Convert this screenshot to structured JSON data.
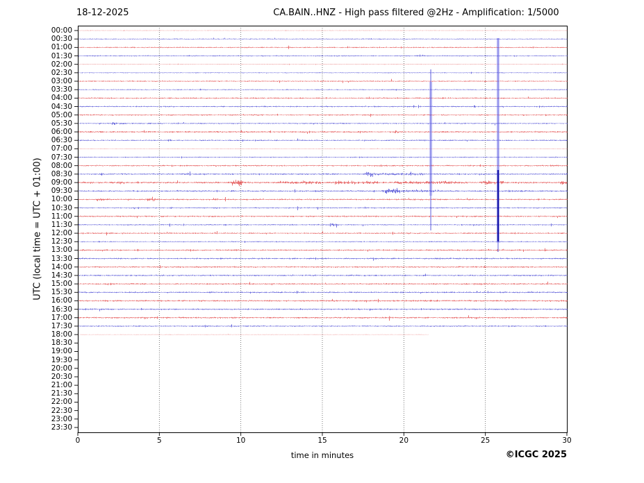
{
  "chart_data": {
    "type": "line",
    "subtype": "helicorder-seismogram",
    "date": "18-12-2025",
    "title": "CA.BAIN..HNZ - High pass filtered @2Hz - Amplification: 1/5000",
    "xlabel": "time in minutes",
    "ylabel": "UTC (local time = UTC + 01:00)",
    "copyright": "©ICGC 2025",
    "x_range": [
      0,
      30
    ],
    "x_ticks": [
      0,
      5,
      10,
      15,
      20,
      25,
      30
    ],
    "x_gridlines": [
      5,
      10,
      15,
      20,
      25
    ],
    "grid_style": "dotted-vertical",
    "row_interval_minutes": 30,
    "rows": [
      {
        "label": "00:00",
        "color": "red",
        "amp": 0.25,
        "end_minute": 30,
        "events": []
      },
      {
        "label": "00:30",
        "color": "blue",
        "amp": 0.6,
        "end_minute": 30,
        "events": []
      },
      {
        "label": "01:00",
        "color": "red",
        "amp": 0.75,
        "end_minute": 30,
        "events": [
          {
            "from": 3.2,
            "to": 3.5,
            "amp": 1.8
          }
        ]
      },
      {
        "label": "01:30",
        "color": "blue",
        "amp": 0.7,
        "end_minute": 30,
        "events": []
      },
      {
        "label": "02:00",
        "color": "red",
        "amp": 0.35,
        "end_minute": 30,
        "events": []
      },
      {
        "label": "02:30",
        "color": "blue",
        "amp": 0.5,
        "end_minute": 30,
        "events": [
          {
            "from": 7.2,
            "to": 7.35,
            "amp": 2.0
          }
        ]
      },
      {
        "label": "03:00",
        "color": "red",
        "amp": 0.8,
        "end_minute": 30,
        "events": [
          {
            "from": 14.8,
            "to": 15.1,
            "amp": 1.8
          }
        ]
      },
      {
        "label": "03:30",
        "color": "blue",
        "amp": 0.6,
        "end_minute": 30,
        "events": []
      },
      {
        "label": "04:00",
        "color": "red",
        "amp": 0.85,
        "end_minute": 30,
        "events": []
      },
      {
        "label": "04:30",
        "color": "blue",
        "amp": 0.8,
        "end_minute": 30,
        "events": [
          {
            "from": 24.25,
            "to": 24.4,
            "amp": 3.5
          }
        ]
      },
      {
        "label": "05:00",
        "color": "red",
        "amp": 0.85,
        "end_minute": 30,
        "events": []
      },
      {
        "label": "05:30",
        "color": "blue",
        "amp": 0.75,
        "end_minute": 30,
        "events": [
          {
            "from": 2.05,
            "to": 2.3,
            "amp": 2.6
          },
          {
            "from": 2.55,
            "to": 2.8,
            "amp": 2.2
          },
          {
            "from": 17.4,
            "to": 17.6,
            "amp": 1.8
          }
        ]
      },
      {
        "label": "06:00",
        "color": "red",
        "amp": 1.05,
        "end_minute": 30,
        "events": [
          {
            "from": 19.4,
            "to": 19.7,
            "amp": 1.8
          }
        ]
      },
      {
        "label": "06:30",
        "color": "blue",
        "amp": 0.8,
        "end_minute": 30,
        "events": [
          {
            "from": 20.9,
            "to": 21.2,
            "amp": 1.6
          }
        ]
      },
      {
        "label": "07:00",
        "color": "red",
        "amp": 0.28,
        "end_minute": 30,
        "events": []
      },
      {
        "label": "07:30",
        "color": "blue",
        "amp": 0.65,
        "end_minute": 30,
        "events": []
      },
      {
        "label": "08:00",
        "color": "red",
        "amp": 0.95,
        "end_minute": 30,
        "events": [
          {
            "from": 8.3,
            "to": 8.6,
            "amp": 1.7
          }
        ]
      },
      {
        "label": "08:30",
        "color": "blue",
        "amp": 0.95,
        "end_minute": 30,
        "events": [
          {
            "from": 6.5,
            "to": 6.75,
            "amp": 2.0
          },
          {
            "from": 17.55,
            "to": 18.05,
            "amp": 4.6
          },
          {
            "from": 18.05,
            "to": 21.3,
            "amp": 1.9
          },
          {
            "from": 23.2,
            "to": 23.5,
            "amp": 1.7
          }
        ]
      },
      {
        "label": "09:00",
        "color": "red",
        "amp": 1.25,
        "end_minute": 30,
        "events": [
          {
            "from": 2.4,
            "to": 2.9,
            "amp": 1.8
          },
          {
            "from": 9.35,
            "to": 10.1,
            "amp": 4.4
          },
          {
            "from": 12.4,
            "to": 15.0,
            "amp": 1.9
          },
          {
            "from": 15.6,
            "to": 18.4,
            "amp": 2.1
          },
          {
            "from": 19.4,
            "to": 23.4,
            "amp": 1.9
          },
          {
            "from": 24.7,
            "to": 26.1,
            "amp": 2.2
          },
          {
            "from": 29.55,
            "to": 30,
            "amp": 2.4
          }
        ]
      },
      {
        "label": "09:30",
        "color": "blue",
        "amp": 0.95,
        "end_minute": 30,
        "events": [
          {
            "from": 18.8,
            "to": 19.75,
            "amp": 4.3
          },
          {
            "from": 19.75,
            "to": 22.4,
            "amp": 1.9
          },
          {
            "from": 26.4,
            "to": 27.6,
            "amp": 1.7
          }
        ]
      },
      {
        "label": "10:00",
        "color": "red",
        "amp": 0.95,
        "end_minute": 30,
        "events": [
          {
            "from": 1.15,
            "to": 1.6,
            "amp": 2.4
          },
          {
            "from": 4.25,
            "to": 4.75,
            "amp": 2.4
          },
          {
            "from": 8.05,
            "to": 8.55,
            "amp": 2.2
          }
        ]
      },
      {
        "label": "10:30",
        "color": "blue",
        "amp": 0.75,
        "end_minute": 30,
        "events": []
      },
      {
        "label": "11:00",
        "color": "red",
        "amp": 0.95,
        "end_minute": 30,
        "events": []
      },
      {
        "label": "11:30",
        "color": "blue",
        "amp": 0.75,
        "end_minute": 30,
        "events": [
          {
            "from": 15.45,
            "to": 15.95,
            "amp": 3.0
          }
        ]
      },
      {
        "label": "12:00",
        "color": "red",
        "amp": 0.85,
        "end_minute": 30,
        "events": []
      },
      {
        "label": "12:30",
        "color": "blue",
        "amp": 0.65,
        "end_minute": 30,
        "events": []
      },
      {
        "label": "13:00",
        "color": "red",
        "amp": 0.95,
        "end_minute": 30,
        "events": []
      },
      {
        "label": "13:30",
        "color": "blue",
        "amp": 0.95,
        "end_minute": 30,
        "events": []
      },
      {
        "label": "14:00",
        "color": "red",
        "amp": 0.95,
        "end_minute": 30,
        "events": []
      },
      {
        "label": "14:30",
        "color": "blue",
        "amp": 0.95,
        "end_minute": 30,
        "events": []
      },
      {
        "label": "15:00",
        "color": "red",
        "amp": 0.95,
        "end_minute": 30,
        "events": []
      },
      {
        "label": "15:30",
        "color": "blue",
        "amp": 0.95,
        "end_minute": 30,
        "events": []
      },
      {
        "label": "16:00",
        "color": "red",
        "amp": 1.05,
        "end_minute": 30,
        "events": []
      },
      {
        "label": "16:30",
        "color": "blue",
        "amp": 0.95,
        "end_minute": 30,
        "events": []
      },
      {
        "label": "17:00",
        "color": "red",
        "amp": 1.05,
        "end_minute": 30,
        "events": []
      },
      {
        "label": "17:30",
        "color": "blue",
        "amp": 0.85,
        "end_minute": 30,
        "events": []
      },
      {
        "label": "18:00",
        "color": "red",
        "amp": 0.22,
        "end_minute": 21.5,
        "events": []
      },
      {
        "label": "18:30",
        "color": "blue",
        "amp": 0,
        "end_minute": 0,
        "events": []
      },
      {
        "label": "19:00",
        "color": "red",
        "amp": 0,
        "end_minute": 0,
        "events": []
      },
      {
        "label": "19:30",
        "color": "blue",
        "amp": 0,
        "end_minute": 0,
        "events": []
      },
      {
        "label": "20:00",
        "color": "red",
        "amp": 0,
        "end_minute": 0,
        "events": []
      },
      {
        "label": "20:30",
        "color": "blue",
        "amp": 0,
        "end_minute": 0,
        "events": []
      },
      {
        "label": "21:00",
        "color": "red",
        "amp": 0,
        "end_minute": 0,
        "events": []
      },
      {
        "label": "21:30",
        "color": "blue",
        "amp": 0,
        "end_minute": 0,
        "events": []
      },
      {
        "label": "22:00",
        "color": "red",
        "amp": 0,
        "end_minute": 0,
        "events": []
      },
      {
        "label": "22:30",
        "color": "blue",
        "amp": 0,
        "end_minute": 0,
        "events": []
      },
      {
        "label": "23:00",
        "color": "red",
        "amp": 0,
        "end_minute": 0,
        "events": []
      },
      {
        "label": "23:30",
        "color": "blue",
        "amp": 0,
        "end_minute": 0,
        "events": []
      }
    ],
    "spikes": [
      {
        "minute": 21.65,
        "line": [
          100,
          332
        ],
        "halo": [
          118,
          282
        ],
        "core": null
      },
      {
        "minute": 25.78,
        "line": [
          55,
          363
        ],
        "halo": [
          55,
          350
        ],
        "core": [
          245,
          348
        ]
      }
    ]
  },
  "colors": {
    "red": "#dd2222",
    "blue": "#2222cc",
    "grid": "#555555",
    "frame": "#000000",
    "spike_halo": "rgba(110,110,235,0.32)",
    "spike_line": "rgba(70,70,215,0.8)",
    "spike_core": "#1212a8"
  }
}
